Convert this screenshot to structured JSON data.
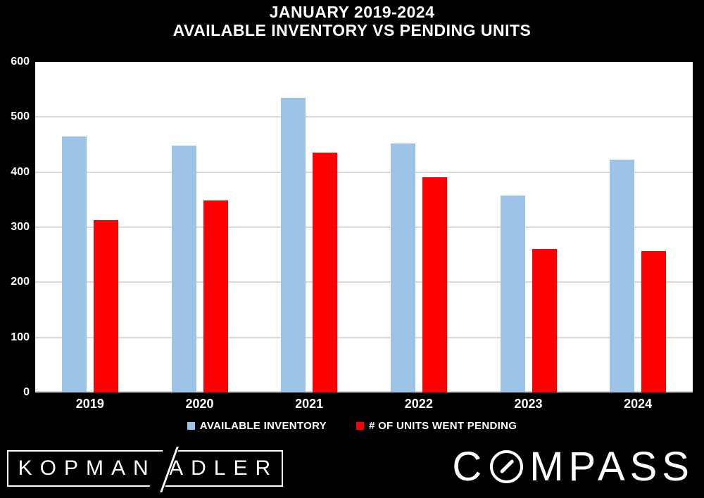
{
  "title": {
    "line1": "JANUARY 2019-2024",
    "line2": "AVAILABLE INVENTORY VS PENDING UNITS"
  },
  "chart_data": {
    "type": "bar",
    "title": "JANUARY 2019-2024 AVAILABLE INVENTORY VS PENDING UNITS",
    "categories": [
      "2019",
      "2020",
      "2021",
      "2022",
      "2023",
      "2024"
    ],
    "series": [
      {
        "name": "AVAILABLE INVENTORY",
        "color": "#9DC3E6",
        "values": [
          465,
          448,
          535,
          452,
          357,
          423
        ]
      },
      {
        "name": "# OF UNITS WENT PENDING",
        "color": "#FF0000",
        "values": [
          313,
          348,
          435,
          391,
          260,
          256
        ]
      }
    ],
    "ylim": [
      0,
      600
    ],
    "yticks": [
      0,
      100,
      200,
      300,
      400,
      500,
      600
    ],
    "grid": true,
    "gridline_color": "#D9D9D9",
    "plot_background": "#FFFFFF",
    "page_background": "#000000",
    "text_color": "#FFFFFF",
    "legend_position": "bottom"
  },
  "footer": {
    "kopman": "KOPMAN",
    "adler": "ADLER",
    "compass_c": "C",
    "compass_rest": "MPASS"
  }
}
